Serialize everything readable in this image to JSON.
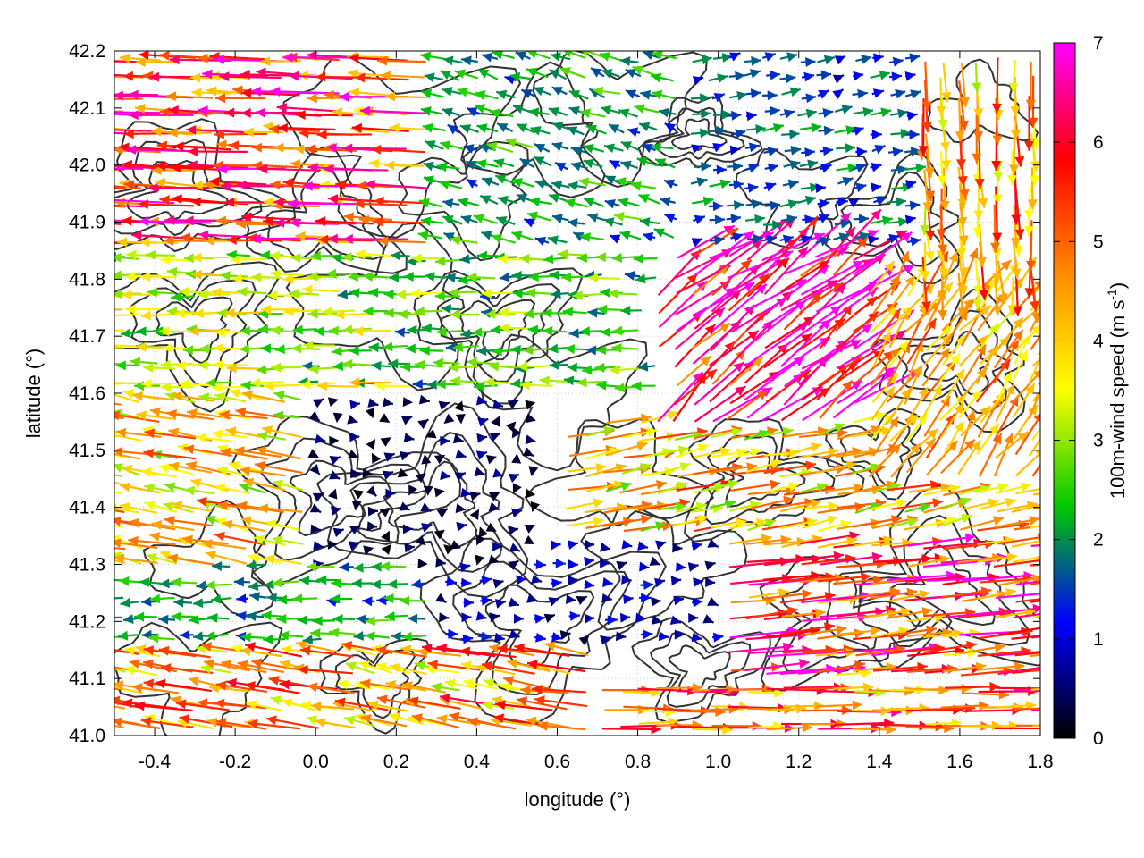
{
  "chart_data": {
    "type": "vector-field",
    "title": "",
    "xlabel": "longitude (°)",
    "ylabel": "latitude (°)",
    "xlim": [
      -0.5,
      1.8
    ],
    "ylim": [
      41.0,
      42.2
    ],
    "x_ticks": [
      "-0.4",
      "-0.2",
      "0.0",
      "0.2",
      "0.4",
      "0.6",
      "0.8",
      "1.0",
      "1.2",
      "1.4",
      "1.6",
      "1.8"
    ],
    "y_ticks": [
      "41.0",
      "41.1",
      "41.2",
      "41.3",
      "41.4",
      "41.5",
      "41.6",
      "41.7",
      "41.8",
      "41.9",
      "42.0",
      "42.1",
      "42.2"
    ],
    "grid": true,
    "colorbar": {
      "label": "100m-wind speed (m s",
      "label_sup": "-1",
      "label_end": ")",
      "range": [
        0,
        7
      ],
      "ticks": [
        "0",
        "1",
        "2",
        "3",
        "4",
        "5",
        "6",
        "7"
      ],
      "colors": [
        "#000000",
        "#0000ff",
        "#00c800",
        "#ffff00",
        "#ff8c00",
        "#ff0000",
        "#ff00ff"
      ]
    },
    "contour_color": "#333333",
    "regions": [
      {
        "name": "north-west",
        "lon": [
          -0.5,
          0.3
        ],
        "lat": [
          41.85,
          42.2
        ],
        "u": -5.5,
        "v": 0.2
      },
      {
        "name": "north-center",
        "lon": [
          0.3,
          0.9
        ],
        "lat": [
          41.85,
          42.2
        ],
        "u": -2.0,
        "v": 0.6
      },
      {
        "name": "north-east",
        "lon": [
          0.9,
          1.5
        ],
        "lat": [
          41.85,
          42.2
        ],
        "u": 1.5,
        "v": 0.3
      },
      {
        "name": "north-far-east",
        "lon": [
          1.5,
          1.8
        ],
        "lat": [
          41.8,
          42.2
        ],
        "u": 0.2,
        "v": -4.5
      },
      {
        "name": "west-middle",
        "lon": [
          -0.5,
          0.2
        ],
        "lat": [
          41.6,
          41.85
        ],
        "u": -3.0,
        "v": 0.0
      },
      {
        "name": "center-west",
        "lon": [
          0.2,
          0.85
        ],
        "lat": [
          41.6,
          41.85
        ],
        "u": -2.5,
        "v": 0.0
      },
      {
        "name": "center-jet",
        "lon": [
          0.85,
          1.35
        ],
        "lat": [
          41.55,
          41.85
        ],
        "u": 5.0,
        "v": 3.8
      },
      {
        "name": "east-middle",
        "lon": [
          1.35,
          1.8
        ],
        "lat": [
          41.45,
          41.8
        ],
        "u": 2.5,
        "v": 3.5
      },
      {
        "name": "west-south",
        "lon": [
          -0.5,
          0.0
        ],
        "lat": [
          41.3,
          41.6
        ],
        "u": -4.0,
        "v": 0.8
      },
      {
        "name": "calm-center",
        "lon": [
          0.0,
          0.55
        ],
        "lat": [
          41.3,
          41.6
        ],
        "u": 0.3,
        "v": 0.0
      },
      {
        "name": "south-east",
        "lon": [
          0.6,
          1.8
        ],
        "lat": [
          41.35,
          41.55
        ],
        "u": 4.0,
        "v": 0.8
      },
      {
        "name": "south-west",
        "lon": [
          -0.5,
          0.3
        ],
        "lat": [
          41.15,
          41.3
        ],
        "u": -2.0,
        "v": 0.0
      },
      {
        "name": "south-center",
        "lon": [
          0.3,
          1.0
        ],
        "lat": [
          41.15,
          41.35
        ],
        "u": 0.8,
        "v": 0.0
      },
      {
        "name": "south-far-east",
        "lon": [
          1.0,
          1.8
        ],
        "lat": [
          41.1,
          41.35
        ],
        "u": 5.5,
        "v": 0.6
      },
      {
        "name": "bottom-west",
        "lon": [
          -0.5,
          0.7
        ],
        "lat": [
          41.0,
          41.15
        ],
        "u": -4.5,
        "v": 0.8
      },
      {
        "name": "bottom-east",
        "lon": [
          0.7,
          1.8
        ],
        "lat": [
          41.0,
          41.1
        ],
        "u": 5.0,
        "v": 0.0
      }
    ]
  }
}
